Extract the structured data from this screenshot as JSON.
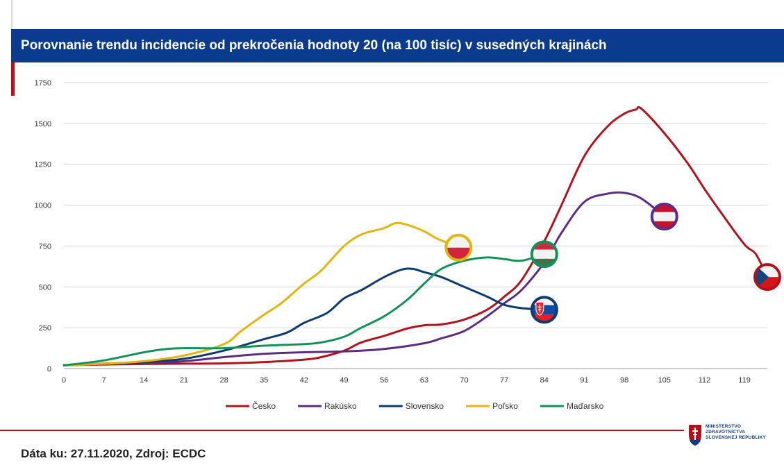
{
  "title": "Porovnanie trendu incidencie od prekročenia hodnoty 20 (na 100 tisíc) v susedných krajinách",
  "footer": "Dáta ku: 27.11.2020, Zdroj: ECDC",
  "logo": {
    "lines": [
      "MINISTERSTVO",
      "ZDRAVOTNÍCTVA",
      "SLOVENSKEJ REPUBLIKY"
    ]
  },
  "chart_data": {
    "type": "line",
    "title": "Porovnanie trendu incidencie od prekročenia hodnoty 20 (na 100 tisíc) v susedných krajinách",
    "xlabel": "",
    "ylabel": "",
    "xlim": [
      0,
      123
    ],
    "ylim": [
      0,
      1750
    ],
    "xticks": [
      0,
      7,
      14,
      21,
      28,
      35,
      42,
      49,
      56,
      63,
      70,
      77,
      84,
      91,
      98,
      105,
      112,
      119
    ],
    "yticks": [
      0,
      250,
      500,
      750,
      1000,
      1250,
      1500,
      1750
    ],
    "grid": true,
    "legend_position": "bottom-center",
    "series": [
      {
        "name": "Česko",
        "color": "#b0131c",
        "flag": "czech",
        "x": [
          0,
          7,
          14,
          21,
          28,
          35,
          42,
          45,
          49,
          52,
          56,
          60,
          63,
          66,
          70,
          74,
          77,
          80,
          84,
          87,
          91,
          95,
          98,
          100,
          101,
          105,
          109,
          112,
          115,
          119,
          121,
          123
        ],
        "y": [
          20,
          25,
          28,
          30,
          32,
          40,
          55,
          70,
          110,
          160,
          200,
          245,
          265,
          270,
          300,
          360,
          440,
          540,
          780,
          1000,
          1300,
          1480,
          1560,
          1585,
          1590,
          1440,
          1260,
          1100,
          950,
          760,
          700,
          560
        ]
      },
      {
        "name": "Rakúsko",
        "color": "#5b2d82",
        "flag": "austria",
        "x": [
          0,
          7,
          14,
          21,
          28,
          35,
          42,
          49,
          56,
          63,
          66,
          70,
          74,
          77,
          80,
          84,
          87,
          91,
          95,
          98,
          101,
          105
        ],
        "y": [
          20,
          30,
          35,
          45,
          70,
          90,
          100,
          105,
          120,
          155,
          185,
          230,
          320,
          400,
          480,
          650,
          830,
          1020,
          1070,
          1075,
          1040,
          930
        ]
      },
      {
        "name": "Slovensko",
        "color": "#0d3b6e",
        "flag": "slovakia",
        "x": [
          0,
          7,
          14,
          21,
          28,
          35,
          39,
          42,
          46,
          49,
          52,
          56,
          59,
          61,
          63,
          66,
          70,
          74,
          77,
          80,
          84
        ],
        "y": [
          20,
          30,
          40,
          60,
          110,
          180,
          220,
          280,
          340,
          430,
          480,
          560,
          605,
          610,
          590,
          560,
          500,
          440,
          390,
          370,
          360
        ]
      },
      {
        "name": "Poľsko",
        "color": "#e3b50c",
        "flag": "poland",
        "x": [
          0,
          7,
          14,
          21,
          28,
          31,
          35,
          38,
          42,
          45,
          49,
          52,
          56,
          58,
          60,
          63,
          65,
          67,
          69
        ],
        "y": [
          20,
          30,
          45,
          80,
          150,
          230,
          330,
          400,
          520,
          600,
          750,
          820,
          860,
          890,
          880,
          840,
          800,
          770,
          740
        ]
      },
      {
        "name": "Maďarsko",
        "color": "#14915a",
        "flag": "hungary",
        "x": [
          0,
          7,
          14,
          18,
          21,
          28,
          35,
          42,
          45,
          49,
          52,
          56,
          60,
          63,
          66,
          70,
          74,
          77,
          80,
          84
        ],
        "y": [
          20,
          50,
          100,
          120,
          125,
          125,
          140,
          150,
          160,
          195,
          250,
          320,
          420,
          520,
          610,
          660,
          680,
          670,
          660,
          700
        ]
      }
    ]
  }
}
